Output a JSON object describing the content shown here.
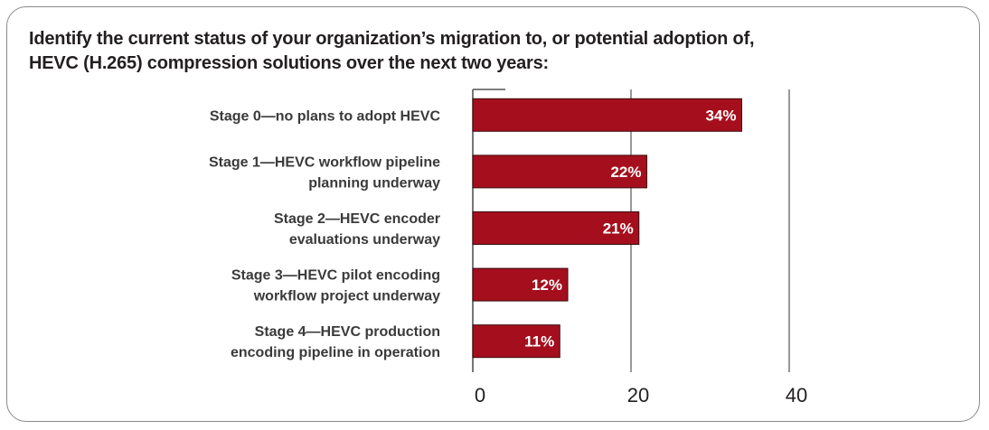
{
  "chart_data": {
    "type": "bar",
    "orientation": "horizontal",
    "title": "Identify the current status of your organization’s migration to, or potential adoption of, HEVC (H.265) compression solutions over the next two years:",
    "categories": [
      [
        "Stage 0—no plans to adopt HEVC"
      ],
      [
        "Stage 1—HEVC workflow pipeline",
        "planning underway"
      ],
      [
        "Stage 2—HEVC encoder",
        "evaluations underway"
      ],
      [
        "Stage 3—HEVC pilot encoding",
        "workflow project underway"
      ],
      [
        "Stage 4—HEVC production",
        "encoding pipeline in operation"
      ]
    ],
    "values": [
      34,
      22,
      21,
      12,
      11
    ],
    "value_labels": [
      "34%",
      "22%",
      "21%",
      "12%",
      "11%"
    ],
    "xlim": [
      0,
      40
    ],
    "xticks": [
      0,
      20,
      40
    ],
    "xtick_labels": [
      "0",
      "20",
      "40"
    ],
    "grid": true,
    "bar_color": "#a50f1d",
    "bar_border_color": "#3a0a0e"
  }
}
